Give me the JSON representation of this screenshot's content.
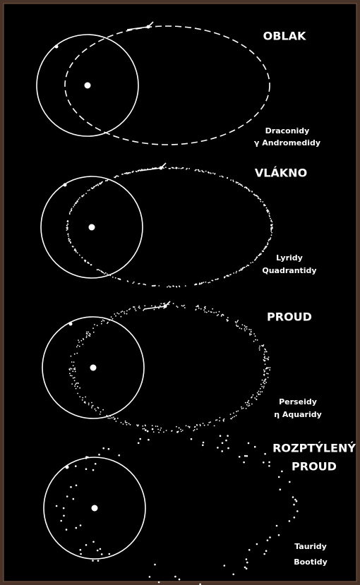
{
  "panels": [
    {
      "title_lines": [
        "OBLAK"
      ],
      "showers": [
        "Draconidy",
        "γ Andromedidy"
      ]
    },
    {
      "title_lines": [
        "VLÁKNO"
      ],
      "showers": [
        "Lyridy",
        "Quadrantidy"
      ]
    },
    {
      "title_lines": [
        "PROUD"
      ],
      "showers": [
        "Perseidy",
        "η Aquaridy"
      ]
    },
    {
      "title_lines": [
        "ROZPTÝLENÝ",
        "PROUD"
      ],
      "showers": [
        "Tauridy",
        "Bootidy"
      ]
    }
  ]
}
